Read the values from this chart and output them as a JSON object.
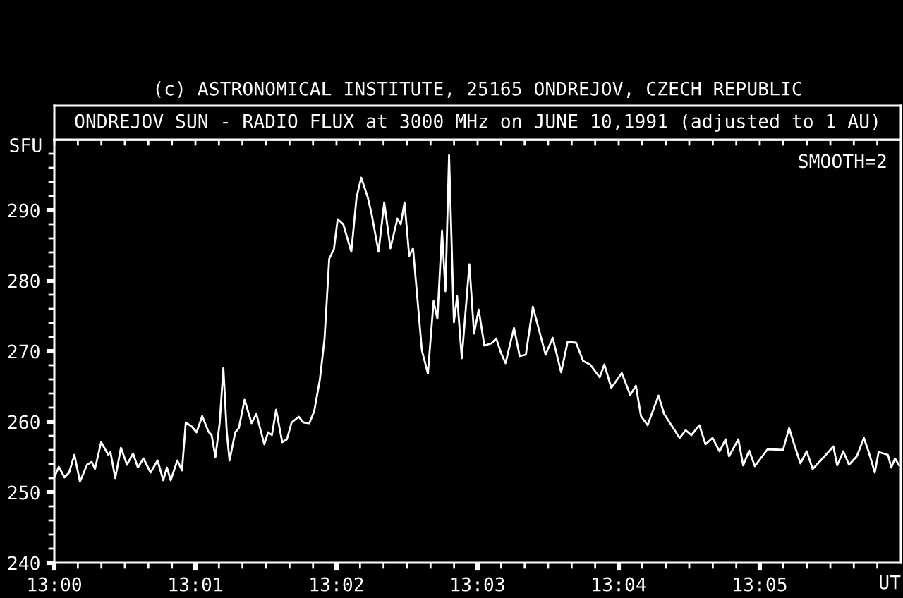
{
  "chart_data": {
    "type": "line",
    "title": "ONDREJOV SUN - RADIO FLUX at 3000 MHz on JUNE 10,1991 (adjusted to 1 AU)",
    "xlabel": "UT",
    "ylabel": "SFU",
    "annotations": [
      "(c) ASTRONOMICAL INSTITUTE, 25165 ONDREJOV, CZECH REPUBLIC",
      "SMOOTH=2"
    ],
    "x": [
      13.0,
      13.00053,
      13.0012,
      13.00175,
      13.00237,
      13.00303,
      13.00387,
      13.00442,
      13.0048,
      13.00553,
      13.00637,
      13.00663,
      13.0072,
      13.00787,
      13.00858,
      13.0093,
      13.00987,
      13.01053,
      13.01137,
      13.0122,
      13.01287,
      13.0133,
      13.01375,
      13.01453,
      13.01508,
      13.01553,
      13.01625,
      13.0168,
      13.01747,
      13.0182,
      13.01858,
      13.01903,
      13.01953,
      13.01997,
      13.02037,
      13.0207,
      13.02137,
      13.0218,
      13.02247,
      13.0233,
      13.02387,
      13.0248,
      13.02525,
      13.0257,
      13.0262,
      13.02692,
      13.02747,
      13.02803,
      13.02887,
      13.02942,
      13.03013,
      13.0307,
      13.03137,
      13.03192,
      13.03247,
      13.03303,
      13.03347,
      13.03413,
      13.03508,
      13.0357,
      13.03625,
      13.03703,
      13.03747,
      13.0383,
      13.03897,
      13.0397,
      13.04053,
      13.04092,
      13.04137,
      13.04192,
      13.04237,
      13.04342,
      13.04413,
      13.0448,
      13.04525,
      13.0458,
      13.0462,
      13.04663,
      13.0472,
      13.04758,
      13.04813,
      13.04903,
      13.04958,
      13.05013,
      13.0508,
      13.05163,
      13.0522,
      13.05275,
      13.0533,
      13.0543,
      13.05497,
      13.0557,
      13.05653,
      13.05803,
      13.05887,
      13.05987,
      13.06063,
      13.06163,
      13.06247,
      13.0633,
      13.06442,
      13.06497,
      13.0658,
      13.06703,
      13.06803,
      13.0687,
      13.0693,
      13.07008,
      13.07137,
      13.07203,
      13.07387,
      13.07458,
      13.07525,
      13.0762,
      13.07692,
      13.07775,
      13.07858,
      13.0793,
      13.0797,
      13.0808,
      13.08137,
      13.08208,
      13.08275,
      13.08425,
      13.08608,
      13.0868,
      13.08747,
      13.08813,
      13.08887,
      13.08958,
      13.09053,
      13.09203,
      13.09247,
      13.0932,
      13.09387,
      13.0948,
      13.09563,
      13.09625,
      13.09692,
      13.09737,
      13.09847,
      13.09887,
      13.0993,
      13.0998
    ],
    "series": [
      {
        "color": "#ffffff",
        "values": [
          252.1,
          253.6,
          252.1,
          252.8,
          255.3,
          251.5,
          253.9,
          254.3,
          253.3,
          257.1,
          255.3,
          255.7,
          252.0,
          256.3,
          253.9,
          255.5,
          253.5,
          254.8,
          252.8,
          254.5,
          251.7,
          253.5,
          251.7,
          254.5,
          253.1,
          259.9,
          259.3,
          258.5,
          260.8,
          258.6,
          258.1,
          255.0,
          259.8,
          267.6,
          258.5,
          254.5,
          258.5,
          259.1,
          263.1,
          259.8,
          261.1,
          256.8,
          258.5,
          258.1,
          261.7,
          257.1,
          257.5,
          259.9,
          260.7,
          259.9,
          259.8,
          261.5,
          266.0,
          271.8,
          283.1,
          284.5,
          288.7,
          288.0,
          284.1,
          291.8,
          294.6,
          291.8,
          289.5,
          284.1,
          291.1,
          284.6,
          288.8,
          288.0,
          291.1,
          283.5,
          284.6,
          270.1,
          266.8,
          277.1,
          274.6,
          287.1,
          278.5,
          297.8,
          274.1,
          277.8,
          269.0,
          282.3,
          272.5,
          275.9,
          270.8,
          271.1,
          271.8,
          269.8,
          268.3,
          273.3,
          269.3,
          269.5,
          276.3,
          269.5,
          271.9,
          267.0,
          271.3,
          271.2,
          268.6,
          268.1,
          266.3,
          268.1,
          264.8,
          266.9,
          263.8,
          265.1,
          260.8,
          259.5,
          263.7,
          261.1,
          257.7,
          258.8,
          258.1,
          259.5,
          256.8,
          257.7,
          255.8,
          257.5,
          255.1,
          257.5,
          253.8,
          255.9,
          253.7,
          256.1,
          256.0,
          259.1,
          256.5,
          254.1,
          255.8,
          253.3,
          254.5,
          256.5,
          253.8,
          255.8,
          253.9,
          255.1,
          257.7,
          255.5,
          252.8,
          255.7,
          255.3,
          253.5,
          254.8,
          253.8
        ]
      }
    ],
    "xlim": [
      13.0,
      13.1
    ],
    "ylim": [
      240,
      300
    ],
    "xticks": [
      {
        "value": 13.0,
        "label": "13:00"
      },
      {
        "value": 13.00278,
        "label": null
      },
      {
        "value": 13.00556,
        "label": null
      },
      {
        "value": 13.00833,
        "label": null
      },
      {
        "value": 13.01111,
        "label": null
      },
      {
        "value": 13.01389,
        "label": null
      },
      {
        "value": 13.01667,
        "label": "13:01"
      },
      {
        "value": 13.01944,
        "label": null
      },
      {
        "value": 13.02222,
        "label": null
      },
      {
        "value": 13.025,
        "label": null
      },
      {
        "value": 13.02778,
        "label": null
      },
      {
        "value": 13.03056,
        "label": null
      },
      {
        "value": 13.03333,
        "label": "13:02"
      },
      {
        "value": 13.03611,
        "label": null
      },
      {
        "value": 13.03889,
        "label": null
      },
      {
        "value": 13.04167,
        "label": null
      },
      {
        "value": 13.04444,
        "label": null
      },
      {
        "value": 13.04722,
        "label": null
      },
      {
        "value": 13.05,
        "label": "13:03"
      },
      {
        "value": 13.05278,
        "label": null
      },
      {
        "value": 13.05556,
        "label": null
      },
      {
        "value": 13.05833,
        "label": null
      },
      {
        "value": 13.06111,
        "label": null
      },
      {
        "value": 13.06389,
        "label": null
      },
      {
        "value": 13.06667,
        "label": "13:04"
      },
      {
        "value": 13.06944,
        "label": null
      },
      {
        "value": 13.07222,
        "label": null
      },
      {
        "value": 13.075,
        "label": null
      },
      {
        "value": 13.07778,
        "label": null
      },
      {
        "value": 13.08056,
        "label": null
      },
      {
        "value": 13.08333,
        "label": "13:05"
      },
      {
        "value": 13.08611,
        "label": null
      },
      {
        "value": 13.08889,
        "label": null
      },
      {
        "value": 13.09167,
        "label": null
      },
      {
        "value": 13.09444,
        "label": null
      },
      {
        "value": 13.09722,
        "label": null
      }
    ],
    "yticks": [
      240,
      {
        "value": 242,
        "label": null
      },
      {
        "value": 244,
        "label": null
      },
      {
        "value": 246,
        "label": null
      },
      {
        "value": 248,
        "label": null
      },
      250,
      {
        "value": 252,
        "label": null
      },
      {
        "value": 254,
        "label": null
      },
      {
        "value": 256,
        "label": null
      },
      {
        "value": 258,
        "label": null
      },
      260,
      {
        "value": 262,
        "label": null
      },
      {
        "value": 264,
        "label": null
      },
      {
        "value": 266,
        "label": null
      },
      {
        "value": 268,
        "label": null
      },
      270,
      {
        "value": 272,
        "label": null
      },
      {
        "value": 274,
        "label": null
      },
      {
        "value": 276,
        "label": null
      },
      {
        "value": 278,
        "label": null
      },
      280,
      {
        "value": 282,
        "label": null
      },
      {
        "value": 284,
        "label": null
      },
      {
        "value": 286,
        "label": null
      },
      {
        "value": 288,
        "label": null
      },
      290,
      {
        "value": 292,
        "label": null
      },
      {
        "value": 294,
        "label": null
      },
      {
        "value": 296,
        "label": null
      },
      {
        "value": 298,
        "label": null
      }
    ]
  }
}
